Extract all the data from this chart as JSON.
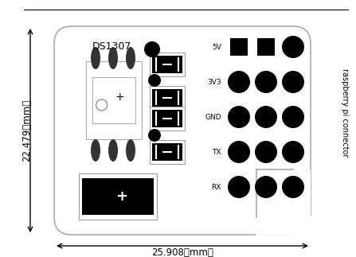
{
  "fig_width": 4.47,
  "fig_height": 3.23,
  "dpi": 100,
  "bg_color": "#ffffff",
  "dim_width_text": "25.908（mm）",
  "dim_height_text": "22.479（mm）",
  "label_ds1307": "DS1307",
  "label_rpi": "raspberry pi connector",
  "label_pins": [
    "5V",
    "3V3",
    "GND",
    "TX",
    "RX"
  ],
  "board_edge": "#aaaaaa",
  "black": "#000000",
  "white": "#ffffff",
  "gray_light": "#cccccc"
}
